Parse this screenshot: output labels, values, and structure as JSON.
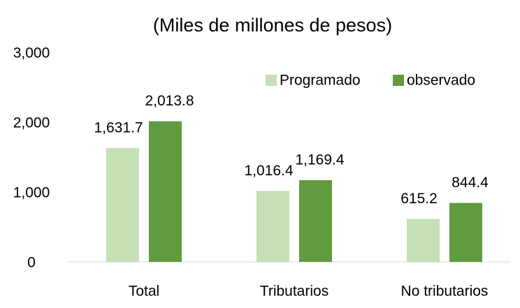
{
  "chart_data": {
    "type": "bar",
    "title": "(Miles de millones de pesos)",
    "categories": [
      "Total",
      "Tributarios",
      "No tributarios"
    ],
    "series": [
      {
        "name": "Programado",
        "color": "#c5e0b4",
        "values": [
          1631.7,
          1016.4,
          615.2
        ],
        "value_labels": [
          "1,631.7",
          "1,016.4",
          "615.2"
        ]
      },
      {
        "name": "observado",
        "color": "#609b40",
        "values": [
          2013.8,
          1169.4,
          844.4
        ],
        "value_labels": [
          "2,013.8",
          "1,169.4",
          "844.4"
        ]
      }
    ],
    "ylim": [
      0,
      3000
    ],
    "yticks": [
      0,
      {
        "value": 1000,
        "label": "1,000"
      },
      {
        "value": 2000,
        "label": "2,000"
      },
      {
        "value": 3000,
        "label": "3,000"
      }
    ],
    "grid": false,
    "legend": "top-right"
  }
}
